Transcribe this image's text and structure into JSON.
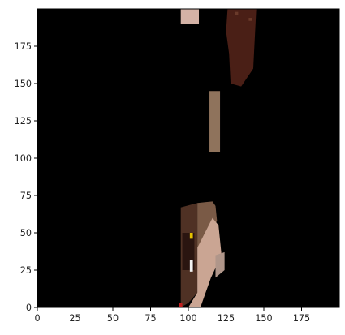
{
  "chart_data": {
    "type": "heatmap",
    "title": "",
    "xlabel": "",
    "ylabel": "",
    "xlim": [
      0,
      200
    ],
    "ylim": [
      0,
      200
    ],
    "origin": "lower",
    "background_color": "#000000",
    "grid": false,
    "x_ticks": [
      {
        "value": 0,
        "label": "0"
      },
      {
        "value": 25,
        "label": "25"
      },
      {
        "value": 50,
        "label": "50"
      },
      {
        "value": 75,
        "label": "75"
      },
      {
        "value": 100,
        "label": "100"
      },
      {
        "value": 125,
        "label": "125"
      },
      {
        "value": 150,
        "label": "150"
      },
      {
        "value": 175,
        "label": "175"
      }
    ],
    "y_ticks": [
      {
        "value": 0,
        "label": "0"
      },
      {
        "value": 25,
        "label": "25"
      },
      {
        "value": 50,
        "label": "50"
      },
      {
        "value": 75,
        "label": "75"
      },
      {
        "value": 100,
        "label": "100"
      },
      {
        "value": 125,
        "label": "125"
      },
      {
        "value": 150,
        "label": "150"
      },
      {
        "value": 175,
        "label": "175"
      }
    ],
    "regions": [
      {
        "name": "top-pinkish-patch",
        "color": "#d4b2a6",
        "points": [
          [
            95,
            190
          ],
          [
            107,
            190
          ],
          [
            107,
            200
          ],
          [
            95,
            200
          ]
        ]
      },
      {
        "name": "top-right-dark-mass",
        "color": "#4a1f16",
        "points": [
          [
            126,
            200
          ],
          [
            145,
            200
          ],
          [
            143,
            160
          ],
          [
            135,
            148
          ],
          [
            128,
            150
          ],
          [
            127,
            170
          ],
          [
            125,
            185
          ]
        ]
      },
      {
        "name": "middle-tan-strip",
        "color": "#8f735c",
        "points": [
          [
            114,
            145
          ],
          [
            121,
            145
          ],
          [
            121,
            104
          ],
          [
            114,
            104
          ]
        ]
      },
      {
        "name": "bottom-dark-left",
        "color": "#4f3124",
        "points": [
          [
            95,
            67
          ],
          [
            106,
            70
          ],
          [
            106,
            10
          ],
          [
            100,
            3
          ],
          [
            95,
            0
          ]
        ]
      },
      {
        "name": "bottom-brown-right",
        "color": "#7a5a46",
        "points": [
          [
            106,
            70
          ],
          [
            116,
            71
          ],
          [
            118,
            68
          ],
          [
            119,
            58
          ],
          [
            110,
            40
          ],
          [
            106,
            40
          ]
        ]
      },
      {
        "name": "bottom-pink-face",
        "color": "#caa593",
        "points": [
          [
            106,
            40
          ],
          [
            116,
            60
          ],
          [
            120,
            55
          ],
          [
            122,
            35
          ],
          [
            115,
            20
          ],
          [
            108,
            0
          ],
          [
            100,
            0
          ],
          [
            106,
            10
          ]
        ]
      },
      {
        "name": "bottom-right-light-sliver",
        "color": "#b0968a",
        "points": [
          [
            118,
            35
          ],
          [
            124,
            37
          ],
          [
            124,
            25
          ],
          [
            118,
            20
          ]
        ]
      },
      {
        "name": "bottom-dark-core",
        "color": "#2a1510",
        "points": [
          [
            96,
            50
          ],
          [
            104,
            50
          ],
          [
            104,
            25
          ],
          [
            96,
            25
          ]
        ]
      }
    ],
    "specks": [
      {
        "name": "yellow-speck",
        "color": "#e5c200",
        "x": 101,
        "y": 46,
        "w": 2,
        "h": 4
      },
      {
        "name": "white-speck",
        "color": "#f2f2f2",
        "x": 101,
        "y": 24,
        "w": 2,
        "h": 8
      },
      {
        "name": "red-speck",
        "color": "#c41e1e",
        "x": 94,
        "y": 0,
        "w": 2,
        "h": 3
      },
      {
        "name": "top-right-speck-1",
        "color": "#6a3a2a",
        "x": 131,
        "y": 196,
        "w": 2,
        "h": 2
      },
      {
        "name": "top-right-speck-2",
        "color": "#6a3a2a",
        "x": 140,
        "y": 192,
        "w": 2,
        "h": 2
      }
    ]
  }
}
